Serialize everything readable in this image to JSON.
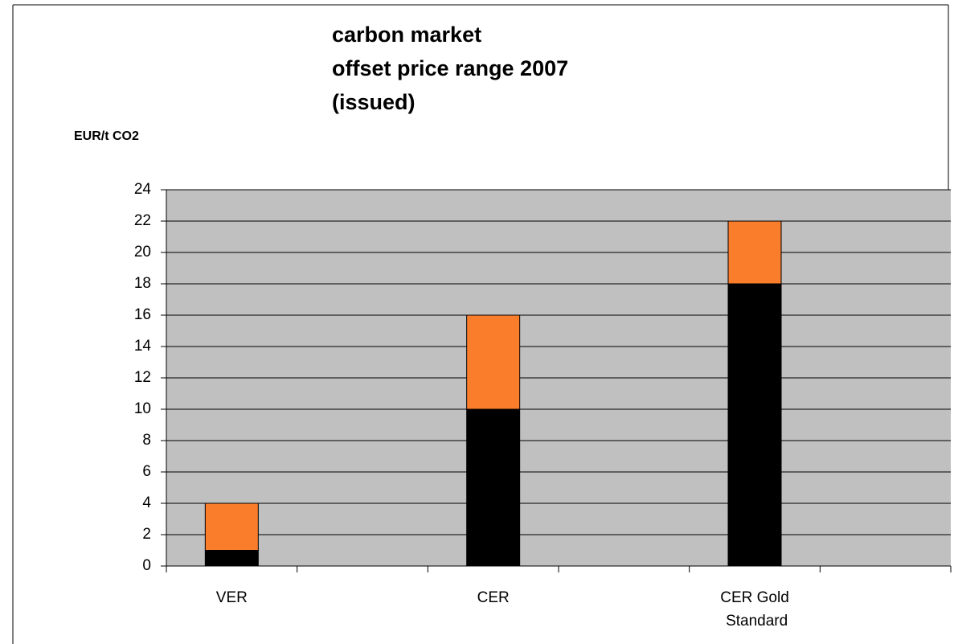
{
  "chart_data": {
    "type": "stacked_bar",
    "title": [
      "carbon market",
      "offset price range 2007",
      "(issued)"
    ],
    "y_label": "EUR/t CO2",
    "categories": [
      "VER",
      null,
      "CER",
      null,
      "CER Gold Standard",
      null
    ],
    "series": [
      {
        "color": "#000000",
        "values": [
          1,
          null,
          10,
          null,
          18,
          null
        ]
      },
      {
        "color": "#fa7d2c",
        "values": [
          3,
          null,
          6,
          null,
          4,
          null
        ]
      }
    ],
    "ylim": [
      0,
      24
    ],
    "yticks": [
      0,
      2,
      4,
      6,
      8,
      10,
      12,
      14,
      16,
      18,
      20,
      22,
      24
    ],
    "grid": true,
    "plot_background": "#c0c0c0"
  }
}
